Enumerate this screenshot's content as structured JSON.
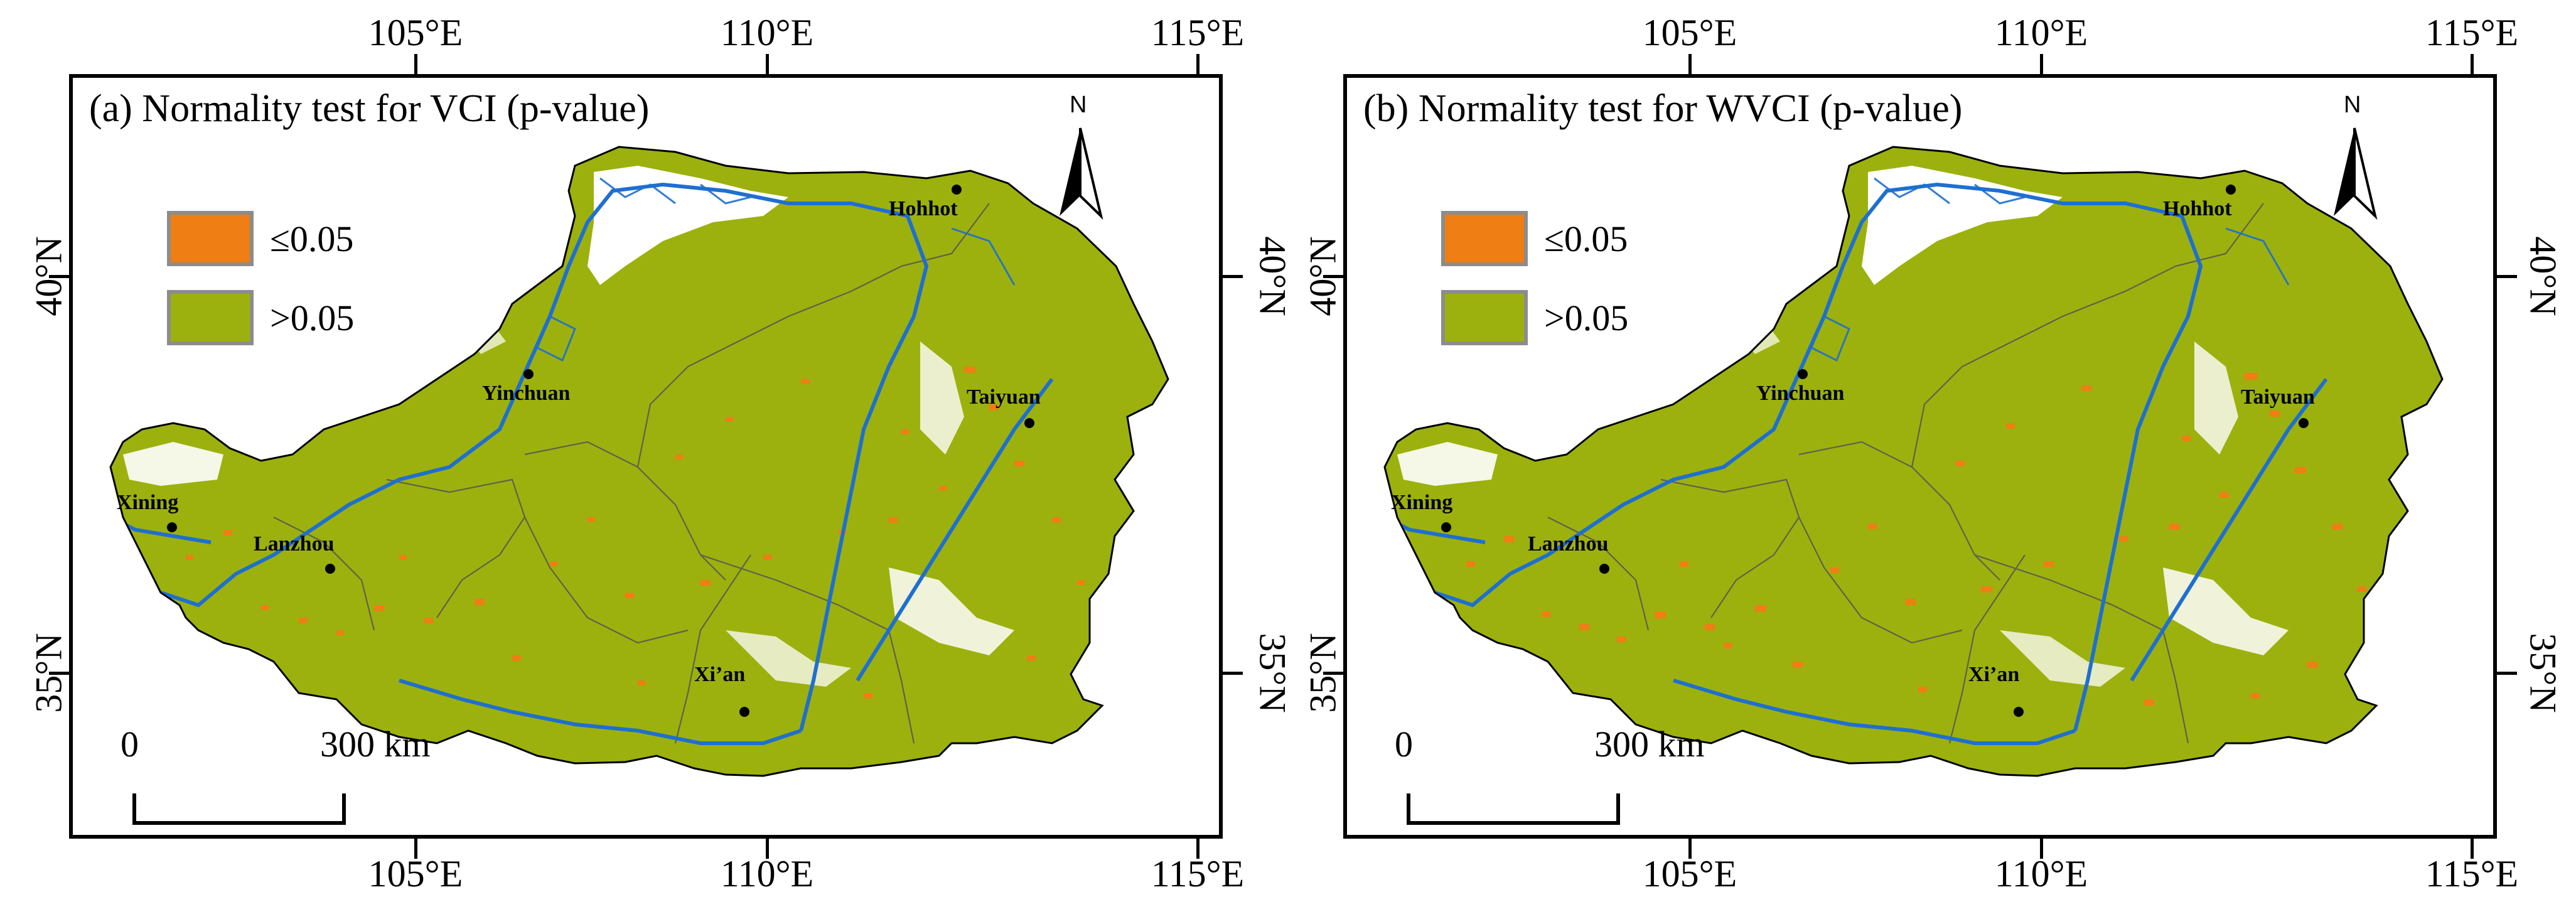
{
  "colors": {
    "significant": "#ef7e14",
    "not_significant": "#9cb10d",
    "river": "#1f6fd0",
    "boundary": "#000000",
    "province": "#555555"
  },
  "axes": {
    "x_ticks": [
      "105°E",
      "110°E",
      "115°E"
    ],
    "y_ticks": [
      "40°N",
      "35°N"
    ]
  },
  "legend": [
    {
      "label": "≤0.05",
      "color": "#ef7e14"
    },
    {
      "label": ">0.05",
      "color": "#9cb10d"
    }
  ],
  "scale": {
    "start": "0",
    "end": "300",
    "unit": "km"
  },
  "north_label": "N",
  "cities": [
    {
      "name": "Hohhot"
    },
    {
      "name": "Yinchuan"
    },
    {
      "name": "Taiyuan"
    },
    {
      "name": "Xining"
    },
    {
      "name": "Lanzhou"
    },
    {
      "name": "Xi’an"
    }
  ],
  "panels": [
    {
      "title": "(a) Normality test for VCI (p-value)"
    },
    {
      "title": "(b) Normality test for WVCI (p-value)"
    }
  ]
}
